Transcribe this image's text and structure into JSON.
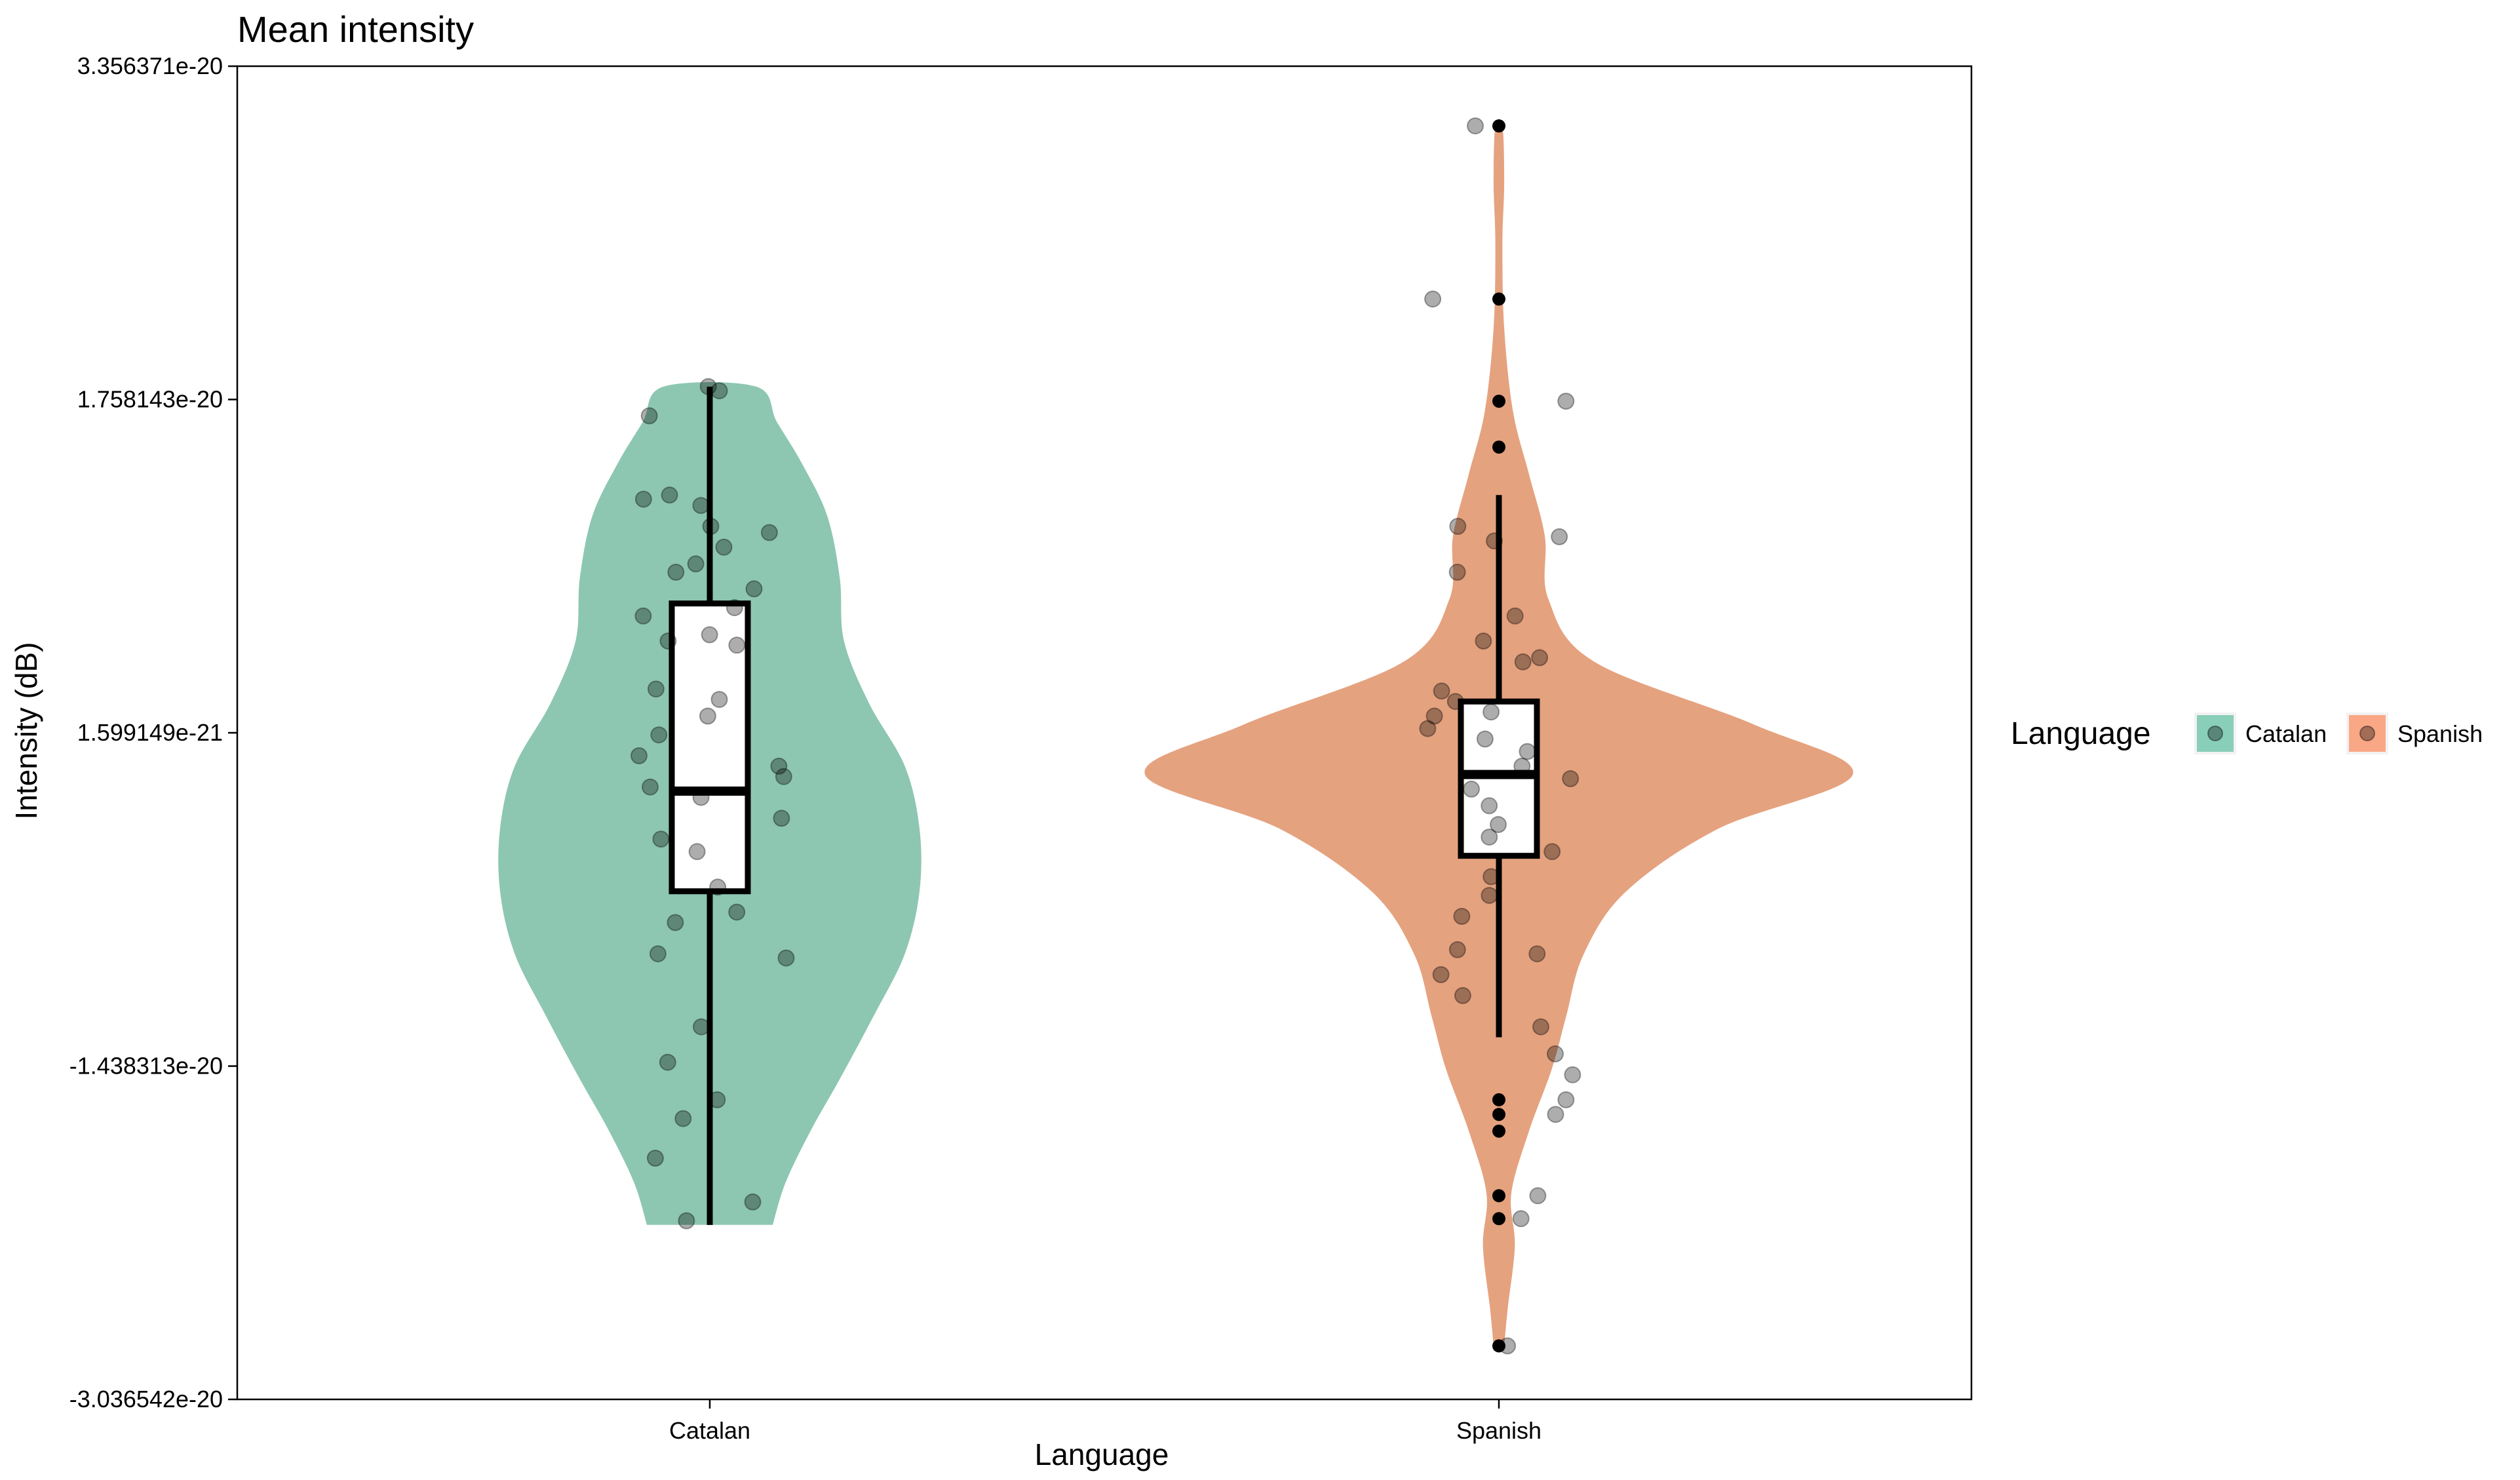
{
  "chart_data": {
    "type": "violin",
    "title": "Mean intensity",
    "xlabel": "Language",
    "ylabel": "Intensity (dB)",
    "categories": [
      "Catalan",
      "Spanish"
    ],
    "y_ticks": [
      {
        "value": -3.036542e-20,
        "label": "-3.036542e-20"
      },
      {
        "value": -1.438313e-20,
        "label": "-1.438313e-20"
      },
      {
        "value": 1.599149e-21,
        "label": "1.599149e-21"
      },
      {
        "value": 1.758143e-20,
        "label": "1.758143e-20"
      },
      {
        "value": 3.356371e-20,
        "label": "3.356371e-20"
      }
    ],
    "ylim": [
      -3.036542e-20,
      3.356371e-20
    ],
    "grid": false,
    "legend": {
      "title": "Language",
      "position": "right",
      "entries": [
        "Catalan",
        "Spanish"
      ]
    },
    "colors": {
      "Catalan": "#66c2a5",
      "Spanish": "#fc8d62"
    },
    "series": [
      {
        "name": "Catalan",
        "color": "#8dc7b1",
        "box": {
          "q1": -6e-21,
          "median": -1.2e-21,
          "q3": 7.8e-21,
          "whisker_low": -2.2e-20,
          "whisker_high": 1.82e-20
        },
        "violin_density": [
          [
            -2.2e-20,
            0.3
          ],
          [
            -2e-20,
            0.36
          ],
          [
            -1.75e-20,
            0.48
          ],
          [
            -1.5e-20,
            0.62
          ],
          [
            -1.2e-20,
            0.78
          ],
          [
            -9e-21,
            0.93
          ],
          [
            -6e-21,
            1.0
          ],
          [
            -3e-21,
            1.0
          ],
          [
            0,
            0.93
          ],
          [
            3e-21,
            0.76
          ],
          [
            6e-21,
            0.64
          ],
          [
            9e-21,
            0.62
          ],
          [
            1.2e-20,
            0.56
          ],
          [
            1.45e-20,
            0.44
          ],
          [
            1.65e-20,
            0.32
          ],
          [
            1.82e-20,
            0.22
          ]
        ],
        "points": [
          1.82e-20,
          1.8e-20,
          1.68e-20,
          1.3e-20,
          1.25e-20,
          1.15e-20,
          1.28e-20,
          1.12e-20,
          1.05e-20,
          9.7e-21,
          9.3e-21,
          8.5e-21,
          7.6e-21,
          7.2e-21,
          6.3e-21,
          6e-21,
          5.8e-21,
          3.7e-21,
          3.2e-21,
          2.4e-21,
          1.5e-21,
          5e-22,
          0,
          -5e-22,
          -1e-21,
          -1.5e-21,
          -2.5e-21,
          -3.5e-21,
          -4.1e-21,
          -5.8e-21,
          -7e-21,
          -7.5e-21,
          -9e-21,
          -9.2e-21,
          -1.25e-20,
          -1.42e-20,
          -1.6e-20,
          -1.69e-20,
          -1.88e-20,
          -2.09e-20,
          -2.18e-20
        ]
      },
      {
        "name": "Spanish",
        "color": "#e5a27f",
        "box": {
          "q1": -4.3e-21,
          "median": -4e-22,
          "q3": 3.1e-21,
          "whisker_low": -1.3e-20,
          "whisker_high": 1.3e-20
        },
        "outliers": [
          3.07e-20,
          2.24e-20,
          1.75e-20,
          1.53e-20,
          -1.6e-20,
          -1.67e-20,
          -1.75e-20,
          -2.06e-20,
          -2.17e-20,
          -2.78e-20
        ],
        "violin_density": [
          [
            -2.78e-20,
            0.015
          ],
          [
            -2.6e-20,
            0.025
          ],
          [
            -2.3e-20,
            0.045
          ],
          [
            -2.05e-20,
            0.035
          ],
          [
            -1.75e-20,
            0.085
          ],
          [
            -1.45e-20,
            0.15
          ],
          [
            -1.2e-20,
            0.19
          ],
          [
            -9e-21,
            0.24
          ],
          [
            -6e-21,
            0.36
          ],
          [
            -3e-21,
            0.62
          ],
          [
            -4e-22,
            1.0
          ],
          [
            2e-21,
            0.72
          ],
          [
            5e-21,
            0.27
          ],
          [
            8e-21,
            0.14
          ],
          [
            1.1e-20,
            0.13
          ],
          [
            1.4e-20,
            0.085
          ],
          [
            1.7e-20,
            0.04
          ],
          [
            2.1e-20,
            0.015
          ],
          [
            2.5e-20,
            0.01
          ],
          [
            2.8e-20,
            0.015
          ],
          [
            3.07e-20,
            0.01
          ]
        ],
        "points": [
          3.07e-20,
          2.24e-20,
          1.75e-20,
          1.15e-20,
          1.1e-20,
          1.08e-20,
          9.3e-21,
          7.2e-21,
          6e-21,
          5.2e-21,
          5e-21,
          3.6e-21,
          3.1e-21,
          2.6e-21,
          2.4e-21,
          1.8e-21,
          1.3e-21,
          7e-22,
          0,
          -6e-22,
          -1.1e-21,
          -1.9e-21,
          -2.8e-21,
          -3.4e-21,
          -4.1e-21,
          -5.3e-21,
          -6.2e-21,
          -7.2e-21,
          -8.8e-21,
          -9e-21,
          -1e-20,
          -1.1e-20,
          -1.25e-20,
          -1.38e-20,
          -1.48e-20,
          -1.6e-20,
          -1.67e-20,
          -2.06e-20,
          -2.17e-20,
          -2.78e-20
        ]
      }
    ]
  }
}
